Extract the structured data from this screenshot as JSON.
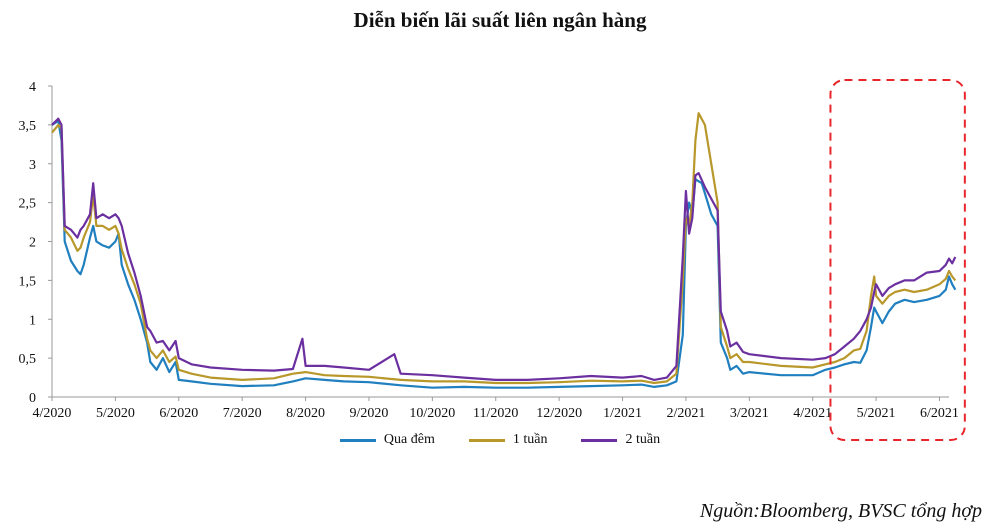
{
  "chart_data": {
    "type": "line",
    "title": "Diễn biến lãi suất liên ngân hàng",
    "xlabel": "",
    "ylabel": "",
    "ylim": [
      0,
      4
    ],
    "y_ticks": [
      "0",
      "0,5",
      "1",
      "1,5",
      "2",
      "2,5",
      "3",
      "3,5",
      "4"
    ],
    "x_ticks": [
      "4/2020",
      "5/2020",
      "6/2020",
      "7/2020",
      "8/2020",
      "9/2020",
      "10/2020",
      "11/2020",
      "12/2020",
      "1/2021",
      "2/2021",
      "3/2021",
      "4/2021",
      "5/2021",
      "6/2021"
    ],
    "x_tick_positions": [
      0,
      1,
      2,
      3,
      4,
      5,
      6,
      7,
      8,
      9,
      10,
      11,
      12,
      13,
      14
    ],
    "xlim": [
      0,
      14.15
    ],
    "grid": false,
    "legend_position": "bottom",
    "highlight_region": {
      "x0": 12.28,
      "x1": 14.4,
      "style": "dashed",
      "color": "#e8262b"
    },
    "series": [
      {
        "name": "Qua đêm",
        "color": "#1f7fbf",
        "points": [
          [
            0,
            3.5
          ],
          [
            0.1,
            3.55
          ],
          [
            0.15,
            3.3
          ],
          [
            0.2,
            2.0
          ],
          [
            0.3,
            1.75
          ],
          [
            0.4,
            1.62
          ],
          [
            0.45,
            1.58
          ],
          [
            0.5,
            1.7
          ],
          [
            0.6,
            2.05
          ],
          [
            0.65,
            2.2
          ],
          [
            0.7,
            2.0
          ],
          [
            0.8,
            1.95
          ],
          [
            0.9,
            1.92
          ],
          [
            1.0,
            2.0
          ],
          [
            1.05,
            2.1
          ],
          [
            1.1,
            1.7
          ],
          [
            1.2,
            1.45
          ],
          [
            1.3,
            1.25
          ],
          [
            1.4,
            1.0
          ],
          [
            1.5,
            0.7
          ],
          [
            1.55,
            0.45
          ],
          [
            1.65,
            0.35
          ],
          [
            1.75,
            0.5
          ],
          [
            1.85,
            0.32
          ],
          [
            1.95,
            0.45
          ],
          [
            2.0,
            0.22
          ],
          [
            2.2,
            0.2
          ],
          [
            2.5,
            0.17
          ],
          [
            3.0,
            0.14
          ],
          [
            3.5,
            0.15
          ],
          [
            3.8,
            0.2
          ],
          [
            4.0,
            0.24
          ],
          [
            4.3,
            0.22
          ],
          [
            4.6,
            0.2
          ],
          [
            5.0,
            0.19
          ],
          [
            5.5,
            0.15
          ],
          [
            6.0,
            0.12
          ],
          [
            6.5,
            0.13
          ],
          [
            7.0,
            0.12
          ],
          [
            7.5,
            0.12
          ],
          [
            8.0,
            0.13
          ],
          [
            8.5,
            0.14
          ],
          [
            9.0,
            0.15
          ],
          [
            9.3,
            0.16
          ],
          [
            9.5,
            0.13
          ],
          [
            9.7,
            0.15
          ],
          [
            9.85,
            0.2
          ],
          [
            9.95,
            0.8
          ],
          [
            10.0,
            2.2
          ],
          [
            10.05,
            2.5
          ],
          [
            10.1,
            2.35
          ],
          [
            10.15,
            2.8
          ],
          [
            10.25,
            2.75
          ],
          [
            10.4,
            2.35
          ],
          [
            10.5,
            2.2
          ],
          [
            10.55,
            0.7
          ],
          [
            10.65,
            0.5
          ],
          [
            10.7,
            0.35
          ],
          [
            10.8,
            0.4
          ],
          [
            10.9,
            0.3
          ],
          [
            11.0,
            0.32
          ],
          [
            11.5,
            0.28
          ],
          [
            12.0,
            0.28
          ],
          [
            12.2,
            0.35
          ],
          [
            12.35,
            0.38
          ],
          [
            12.5,
            0.42
          ],
          [
            12.65,
            0.45
          ],
          [
            12.75,
            0.44
          ],
          [
            12.85,
            0.6
          ],
          [
            12.92,
            0.9
          ],
          [
            12.97,
            1.15
          ],
          [
            13.0,
            1.1
          ],
          [
            13.1,
            0.95
          ],
          [
            13.2,
            1.1
          ],
          [
            13.3,
            1.2
          ],
          [
            13.45,
            1.25
          ],
          [
            13.6,
            1.22
          ],
          [
            13.8,
            1.25
          ],
          [
            14.0,
            1.3
          ],
          [
            14.1,
            1.38
          ],
          [
            14.15,
            1.55
          ],
          [
            14.2,
            1.45
          ],
          [
            14.25,
            1.38
          ]
        ]
      },
      {
        "name": "1 tuần",
        "color": "#b8982a",
        "points": [
          [
            0,
            3.4
          ],
          [
            0.1,
            3.5
          ],
          [
            0.15,
            3.45
          ],
          [
            0.2,
            2.15
          ],
          [
            0.3,
            2.05
          ],
          [
            0.4,
            1.88
          ],
          [
            0.45,
            1.92
          ],
          [
            0.5,
            2.05
          ],
          [
            0.6,
            2.25
          ],
          [
            0.65,
            2.6
          ],
          [
            0.7,
            2.2
          ],
          [
            0.8,
            2.2
          ],
          [
            0.9,
            2.15
          ],
          [
            1.0,
            2.2
          ],
          [
            1.05,
            2.1
          ],
          [
            1.1,
            1.9
          ],
          [
            1.2,
            1.65
          ],
          [
            1.3,
            1.45
          ],
          [
            1.4,
            1.2
          ],
          [
            1.5,
            0.75
          ],
          [
            1.55,
            0.6
          ],
          [
            1.65,
            0.5
          ],
          [
            1.75,
            0.6
          ],
          [
            1.85,
            0.45
          ],
          [
            1.95,
            0.52
          ],
          [
            2.0,
            0.35
          ],
          [
            2.2,
            0.3
          ],
          [
            2.5,
            0.25
          ],
          [
            3.0,
            0.22
          ],
          [
            3.5,
            0.24
          ],
          [
            3.8,
            0.3
          ],
          [
            4.0,
            0.32
          ],
          [
            4.3,
            0.28
          ],
          [
            4.6,
            0.27
          ],
          [
            5.0,
            0.26
          ],
          [
            5.5,
            0.22
          ],
          [
            6.0,
            0.2
          ],
          [
            6.5,
            0.2
          ],
          [
            7.0,
            0.18
          ],
          [
            7.5,
            0.18
          ],
          [
            8.0,
            0.19
          ],
          [
            8.5,
            0.21
          ],
          [
            9.0,
            0.2
          ],
          [
            9.3,
            0.21
          ],
          [
            9.5,
            0.18
          ],
          [
            9.7,
            0.2
          ],
          [
            9.85,
            0.3
          ],
          [
            9.95,
            1.5
          ],
          [
            10.0,
            2.3
          ],
          [
            10.05,
            2.2
          ],
          [
            10.1,
            2.5
          ],
          [
            10.15,
            3.3
          ],
          [
            10.2,
            3.65
          ],
          [
            10.3,
            3.5
          ],
          [
            10.5,
            2.5
          ],
          [
            10.55,
            0.9
          ],
          [
            10.65,
            0.65
          ],
          [
            10.7,
            0.5
          ],
          [
            10.8,
            0.55
          ],
          [
            10.9,
            0.45
          ],
          [
            11.0,
            0.45
          ],
          [
            11.5,
            0.4
          ],
          [
            12.0,
            0.38
          ],
          [
            12.2,
            0.42
          ],
          [
            12.35,
            0.45
          ],
          [
            12.5,
            0.5
          ],
          [
            12.65,
            0.6
          ],
          [
            12.75,
            0.62
          ],
          [
            12.85,
            0.85
          ],
          [
            12.92,
            1.3
          ],
          [
            12.97,
            1.55
          ],
          [
            13.0,
            1.3
          ],
          [
            13.1,
            1.2
          ],
          [
            13.2,
            1.3
          ],
          [
            13.3,
            1.35
          ],
          [
            13.45,
            1.38
          ],
          [
            13.6,
            1.35
          ],
          [
            13.8,
            1.38
          ],
          [
            14.0,
            1.45
          ],
          [
            14.1,
            1.52
          ],
          [
            14.15,
            1.62
          ],
          [
            14.2,
            1.55
          ],
          [
            14.25,
            1.5
          ]
        ]
      },
      {
        "name": "2 tuần",
        "color": "#6b2fa0",
        "points": [
          [
            0,
            3.5
          ],
          [
            0.1,
            3.58
          ],
          [
            0.15,
            3.5
          ],
          [
            0.2,
            2.2
          ],
          [
            0.3,
            2.15
          ],
          [
            0.4,
            2.05
          ],
          [
            0.45,
            2.15
          ],
          [
            0.5,
            2.2
          ],
          [
            0.6,
            2.35
          ],
          [
            0.65,
            2.75
          ],
          [
            0.7,
            2.3
          ],
          [
            0.8,
            2.35
          ],
          [
            0.9,
            2.3
          ],
          [
            1.0,
            2.35
          ],
          [
            1.05,
            2.3
          ],
          [
            1.1,
            2.2
          ],
          [
            1.2,
            1.85
          ],
          [
            1.3,
            1.6
          ],
          [
            1.4,
            1.3
          ],
          [
            1.5,
            0.9
          ],
          [
            1.55,
            0.85
          ],
          [
            1.65,
            0.7
          ],
          [
            1.75,
            0.72
          ],
          [
            1.85,
            0.6
          ],
          [
            1.95,
            0.72
          ],
          [
            2.0,
            0.5
          ],
          [
            2.2,
            0.42
          ],
          [
            2.5,
            0.38
          ],
          [
            3.0,
            0.35
          ],
          [
            3.5,
            0.34
          ],
          [
            3.8,
            0.36
          ],
          [
            3.95,
            0.75
          ],
          [
            4.0,
            0.4
          ],
          [
            4.3,
            0.4
          ],
          [
            4.6,
            0.38
          ],
          [
            5.0,
            0.35
          ],
          [
            5.4,
            0.55
          ],
          [
            5.5,
            0.3
          ],
          [
            6.0,
            0.28
          ],
          [
            6.5,
            0.25
          ],
          [
            7.0,
            0.22
          ],
          [
            7.5,
            0.22
          ],
          [
            8.0,
            0.24
          ],
          [
            8.5,
            0.27
          ],
          [
            9.0,
            0.25
          ],
          [
            9.3,
            0.27
          ],
          [
            9.5,
            0.22
          ],
          [
            9.7,
            0.25
          ],
          [
            9.85,
            0.4
          ],
          [
            9.95,
            1.8
          ],
          [
            10.0,
            2.65
          ],
          [
            10.05,
            2.1
          ],
          [
            10.1,
            2.3
          ],
          [
            10.15,
            2.85
          ],
          [
            10.2,
            2.88
          ],
          [
            10.3,
            2.7
          ],
          [
            10.5,
            2.4
          ],
          [
            10.55,
            1.1
          ],
          [
            10.65,
            0.85
          ],
          [
            10.7,
            0.65
          ],
          [
            10.8,
            0.7
          ],
          [
            10.9,
            0.58
          ],
          [
            11.0,
            0.55
          ],
          [
            11.5,
            0.5
          ],
          [
            12.0,
            0.48
          ],
          [
            12.2,
            0.5
          ],
          [
            12.35,
            0.55
          ],
          [
            12.5,
            0.65
          ],
          [
            12.65,
            0.75
          ],
          [
            12.75,
            0.85
          ],
          [
            12.85,
            1.0
          ],
          [
            12.92,
            1.15
          ],
          [
            12.97,
            1.35
          ],
          [
            13.0,
            1.45
          ],
          [
            13.1,
            1.3
          ],
          [
            13.2,
            1.4
          ],
          [
            13.3,
            1.45
          ],
          [
            13.45,
            1.5
          ],
          [
            13.6,
            1.5
          ],
          [
            13.8,
            1.6
          ],
          [
            14.0,
            1.62
          ],
          [
            14.1,
            1.7
          ],
          [
            14.15,
            1.78
          ],
          [
            14.2,
            1.72
          ],
          [
            14.25,
            1.8
          ]
        ]
      }
    ]
  },
  "source_note": "Nguồn:Bloomberg, BVSC tổng hợp"
}
